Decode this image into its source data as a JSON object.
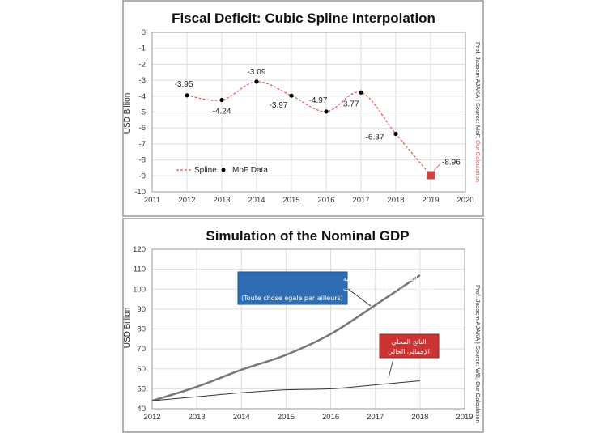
{
  "chart_data": [
    {
      "type": "line",
      "title": "Fiscal Deficit: Cubic Spline Interpolation",
      "ylabel": "USD Billion",
      "xlabel": "",
      "xlim": [
        2011,
        2020
      ],
      "ylim": [
        -10,
        0
      ],
      "x_ticks": [
        "2011",
        "2012",
        "2013",
        "2014",
        "2015",
        "2016",
        "2017",
        "2018",
        "2019",
        "2020"
      ],
      "y_ticks": [
        "0",
        "-1",
        "-2",
        "-3",
        "-4",
        "-5",
        "-6",
        "-7",
        "-8",
        "-9",
        "-10"
      ],
      "grid": true,
      "legend": {
        "placement": "bottom-left",
        "entries": [
          "Spline",
          "MoF Data"
        ]
      },
      "series": [
        {
          "name": "Spline",
          "style": "dashed",
          "color": "#e05555",
          "x": [
            2012,
            2013,
            2014,
            2015,
            2016,
            2017,
            2018,
            2019
          ],
          "y": [
            -3.95,
            -4.24,
            -3.09,
            -3.97,
            -4.97,
            -3.77,
            -6.37,
            -8.96
          ]
        },
        {
          "name": "MoF Data",
          "style": "markers",
          "color": "#000000",
          "x": [
            2012,
            2013,
            2014,
            2015,
            2016,
            2017,
            2018
          ],
          "y": [
            -3.95,
            -4.24,
            -3.09,
            -3.97,
            -4.97,
            -3.77,
            -6.37
          ]
        }
      ],
      "highlight_point": {
        "x": 2019,
        "y": -8.96,
        "label": "-8.96",
        "color": "#cc4444"
      },
      "data_labels": [
        "-3.95",
        "-4.24",
        "-3.09",
        "-3.97",
        "-4.97",
        "-3.77",
        "-6.37"
      ],
      "side_note": {
        "text": "Prof. Jassem AJAKA | Source: MoF, ",
        "highlight": "Our Calculation",
        "highlight_color": "#e05555"
      }
    },
    {
      "type": "line",
      "title": "Simulation of the Nominal GDP",
      "ylabel": "USD Billion",
      "xlabel": "",
      "xlim": [
        2012,
        2019
      ],
      "ylim": [
        40,
        120
      ],
      "x_ticks": [
        "2012",
        "2013",
        "2014",
        "2015",
        "2016",
        "2017",
        "2018",
        "2019"
      ],
      "y_ticks": [
        "120",
        "110",
        "100",
        "90",
        "80",
        "70",
        "60",
        "50",
        "40"
      ],
      "grid": true,
      "series": [
        {
          "x": [
            2012,
            2013,
            2014,
            2015,
            2016,
            2017,
            2018
          ],
          "y": [
            44,
            51,
            59.5,
            67,
            77.5,
            92,
            107
          ],
          "color": "#777777"
        },
        {
          "x": [
            2012,
            2013,
            2014,
            2015,
            2016,
            2017,
            2018
          ],
          "y": [
            44,
            46,
            48,
            49.5,
            50,
            52,
            54
          ],
          "color": "#333333"
        }
      ],
      "annotations": [
        {
          "lines": [
            "محاكاة للناتج المحلي الإجمالي في فرضية",
            "أن العجز كان أستخدم كإستثمارات",
            "(Toute chose égale par ailleurs)"
          ],
          "color": "#2e6db4"
        },
        {
          "lines": [
            "الناتج المحلي",
            "الإجمالي الحالي"
          ],
          "color": "#cc3333"
        }
      ],
      "side_note": {
        "text": "Prof. Jassem AJAKA | Source: WB, Our Calculation"
      }
    }
  ]
}
